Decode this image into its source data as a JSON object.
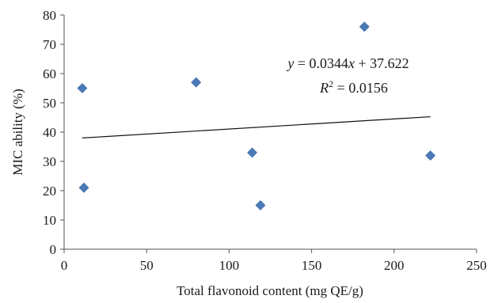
{
  "chart_data": {
    "type": "scatter",
    "xlabel": "Total flavonoid content (mg QE/g)",
    "ylabel": "MIC ability (%)",
    "xlim": [
      0,
      250
    ],
    "ylim": [
      0,
      80
    ],
    "x_ticks": [
      "0",
      "50",
      "100",
      "150",
      "200",
      "250"
    ],
    "y_ticks": [
      "0",
      "10",
      "20",
      "30",
      "40",
      "50",
      "60",
      "70",
      "80"
    ],
    "grid": false,
    "marker": "diamond",
    "marker_color": "#4a7ab8",
    "series": [
      {
        "points": [
          {
            "x": 11,
            "y": 55
          },
          {
            "x": 12,
            "y": 21
          },
          {
            "x": 80,
            "y": 57
          },
          {
            "x": 114,
            "y": 33
          },
          {
            "x": 119,
            "y": 15
          },
          {
            "x": 182,
            "y": 76
          },
          {
            "x": 222,
            "y": 32
          }
        ]
      }
    ],
    "trendline": {
      "type": "linear",
      "slope": 0.0344,
      "intercept": 37.622,
      "x_range": [
        11,
        222
      ],
      "equation_text": "y = 0.0344x + 37.622",
      "r2_text": "R² = 0.0156"
    }
  }
}
